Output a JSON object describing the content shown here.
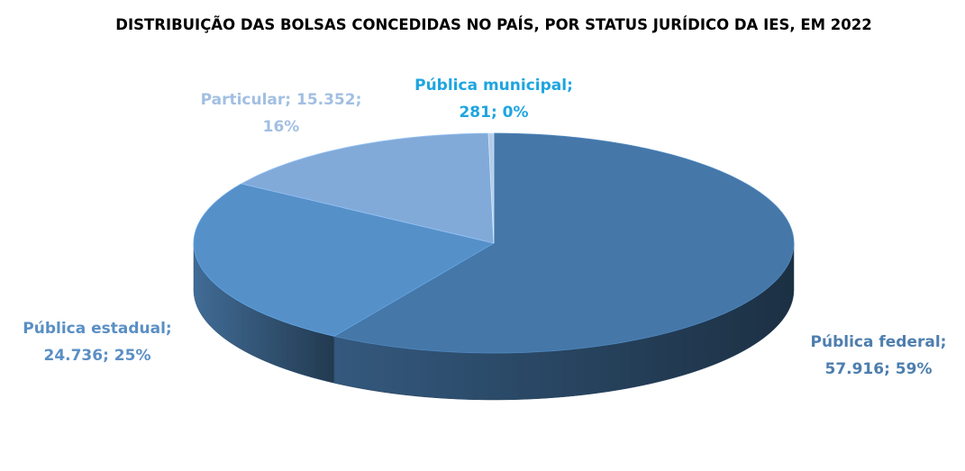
{
  "chart_data": {
    "type": "pie",
    "title": "DISTRIBUIÇÃO DAS BOLSAS CONCEDIDAS NO PAÍS, POR STATUS JURÍDICO DA IES, EM 2022",
    "series": [
      {
        "values": [
          57916,
          24736,
          15352,
          281
        ],
        "value_labels": [
          "Pública federal; 57.916; 59%",
          "Pública estadual; 24.736; 25%",
          "Particular; 15.352; 16%",
          "Pública municipal; 281; 0%"
        ],
        "colors": [
          "#4577a8",
          "#5690c8",
          "#82aad8",
          "#b4cbe8"
        ],
        "label_colors": [
          "#4d7eae",
          "#5a8fc5",
          "#a2bfe2",
          "#1ea5e0"
        ]
      }
    ]
  }
}
